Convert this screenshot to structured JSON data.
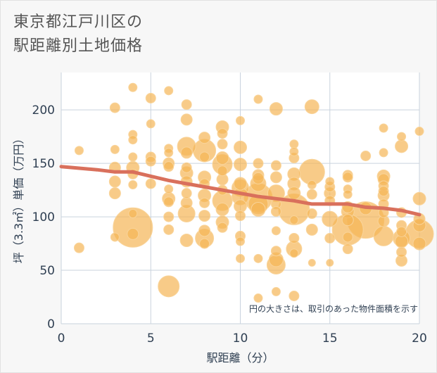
{
  "title": {
    "line1": "東京都江戸川区の",
    "line2": "駅距離別土地価格"
  },
  "colors": {
    "background": "#f7f7f7",
    "plot_background": "#ffffff",
    "bubble": "#f5b555",
    "bubble_stroke": "#f9d49a",
    "trend": "#d9705c",
    "grid": "#c9d3de",
    "axis_text": "#2f3f52"
  },
  "chart_data": {
    "type": "scatter",
    "title": "東京都江戸川区の駅距離別土地価格",
    "xlabel": "駅距離（分）",
    "ylabel": "坪（3.3㎡）単価（万円）",
    "xlim": [
      0,
      20
    ],
    "ylim": [
      0,
      235
    ],
    "xticks": [
      0,
      5,
      10,
      15,
      20
    ],
    "yticks": [
      0,
      50,
      100,
      150,
      200
    ],
    "grid": true,
    "annotation": "円の大きさは、取引のあった物件面積を示す",
    "points": [
      {
        "x": 1,
        "y": 162,
        "s": 6
      },
      {
        "x": 1,
        "y": 71,
        "s": 7
      },
      {
        "x": 3,
        "y": 202,
        "s": 7
      },
      {
        "x": 3,
        "y": 163,
        "s": 6
      },
      {
        "x": 3,
        "y": 146,
        "s": 8
      },
      {
        "x": 3,
        "y": 133,
        "s": 8
      },
      {
        "x": 3,
        "y": 122,
        "s": 8
      },
      {
        "x": 3,
        "y": 81,
        "s": 6
      },
      {
        "x": 4,
        "y": 221,
        "s": 6
      },
      {
        "x": 4,
        "y": 177,
        "s": 6
      },
      {
        "x": 4,
        "y": 172,
        "s": 6
      },
      {
        "x": 4,
        "y": 156,
        "s": 6
      },
      {
        "x": 4,
        "y": 146,
        "s": 9
      },
      {
        "x": 4,
        "y": 140,
        "s": 7
      },
      {
        "x": 4,
        "y": 130,
        "s": 6
      },
      {
        "x": 4,
        "y": 103,
        "s": 6
      },
      {
        "x": 4,
        "y": 90,
        "s": 28
      },
      {
        "x": 4,
        "y": 84,
        "s": 8
      },
      {
        "x": 5,
        "y": 211,
        "s": 7
      },
      {
        "x": 5,
        "y": 187,
        "s": 6
      },
      {
        "x": 5,
        "y": 156,
        "s": 7
      },
      {
        "x": 5,
        "y": 152,
        "s": 7
      },
      {
        "x": 5,
        "y": 131,
        "s": 7
      },
      {
        "x": 6,
        "y": 218,
        "s": 6
      },
      {
        "x": 6,
        "y": 164,
        "s": 6
      },
      {
        "x": 6,
        "y": 160,
        "s": 6
      },
      {
        "x": 6,
        "y": 150,
        "s": 8
      },
      {
        "x": 6,
        "y": 147,
        "s": 7
      },
      {
        "x": 6,
        "y": 126,
        "s": 6
      },
      {
        "x": 6,
        "y": 117,
        "s": 9
      },
      {
        "x": 6,
        "y": 114,
        "s": 7
      },
      {
        "x": 6,
        "y": 100,
        "s": 7
      },
      {
        "x": 6,
        "y": 88,
        "s": 7
      },
      {
        "x": 6,
        "y": 35,
        "s": 15
      },
      {
        "x": 7,
        "y": 205,
        "s": 7
      },
      {
        "x": 7,
        "y": 191,
        "s": 8
      },
      {
        "x": 7,
        "y": 166,
        "s": 13
      },
      {
        "x": 7,
        "y": 160,
        "s": 8
      },
      {
        "x": 7,
        "y": 146,
        "s": 7
      },
      {
        "x": 7,
        "y": 141,
        "s": 9
      },
      {
        "x": 7,
        "y": 133,
        "s": 8
      },
      {
        "x": 7,
        "y": 122,
        "s": 7
      },
      {
        "x": 7,
        "y": 113,
        "s": 8
      },
      {
        "x": 7,
        "y": 103,
        "s": 12
      },
      {
        "x": 7,
        "y": 78,
        "s": 9
      },
      {
        "x": 8,
        "y": 174,
        "s": 8
      },
      {
        "x": 8,
        "y": 162,
        "s": 16
      },
      {
        "x": 8,
        "y": 156,
        "s": 7
      },
      {
        "x": 8,
        "y": 137,
        "s": 9
      },
      {
        "x": 8,
        "y": 131,
        "s": 7
      },
      {
        "x": 8,
        "y": 120,
        "s": 9
      },
      {
        "x": 8,
        "y": 113,
        "s": 7
      },
      {
        "x": 8,
        "y": 101,
        "s": 8
      },
      {
        "x": 8,
        "y": 87,
        "s": 8
      },
      {
        "x": 8,
        "y": 80,
        "s": 13
      },
      {
        "x": 8,
        "y": 75,
        "s": 7
      },
      {
        "x": 9,
        "y": 184,
        "s": 9
      },
      {
        "x": 9,
        "y": 178,
        "s": 7
      },
      {
        "x": 9,
        "y": 168,
        "s": 7
      },
      {
        "x": 9,
        "y": 155,
        "s": 9
      },
      {
        "x": 9,
        "y": 149,
        "s": 14
      },
      {
        "x": 9,
        "y": 143,
        "s": 7
      },
      {
        "x": 9,
        "y": 135,
        "s": 8
      },
      {
        "x": 9,
        "y": 125,
        "s": 7
      },
      {
        "x": 9,
        "y": 115,
        "s": 14
      },
      {
        "x": 9,
        "y": 107,
        "s": 9
      },
      {
        "x": 9,
        "y": 95,
        "s": 9
      },
      {
        "x": 9,
        "y": 90,
        "s": 7
      },
      {
        "x": 10,
        "y": 190,
        "s": 6
      },
      {
        "x": 10,
        "y": 165,
        "s": 9
      },
      {
        "x": 10,
        "y": 149,
        "s": 9
      },
      {
        "x": 10,
        "y": 131,
        "s": 9
      },
      {
        "x": 10,
        "y": 127,
        "s": 12
      },
      {
        "x": 10,
        "y": 119,
        "s": 12
      },
      {
        "x": 10,
        "y": 110,
        "s": 9
      },
      {
        "x": 10,
        "y": 101,
        "s": 7
      },
      {
        "x": 10,
        "y": 82,
        "s": 7
      },
      {
        "x": 10,
        "y": 77,
        "s": 6
      },
      {
        "x": 10,
        "y": 61,
        "s": 6
      },
      {
        "x": 11,
        "y": 210,
        "s": 6
      },
      {
        "x": 11,
        "y": 150,
        "s": 7
      },
      {
        "x": 11,
        "y": 139,
        "s": 8
      },
      {
        "x": 11,
        "y": 136,
        "s": 8
      },
      {
        "x": 11,
        "y": 131,
        "s": 11
      },
      {
        "x": 11,
        "y": 118,
        "s": 20
      },
      {
        "x": 11,
        "y": 112,
        "s": 14
      },
      {
        "x": 11,
        "y": 107,
        "s": 10
      },
      {
        "x": 11,
        "y": 61,
        "s": 6
      },
      {
        "x": 11,
        "y": 24,
        "s": 6
      },
      {
        "x": 12,
        "y": 201,
        "s": 9
      },
      {
        "x": 12,
        "y": 148,
        "s": 7
      },
      {
        "x": 12,
        "y": 137,
        "s": 8
      },
      {
        "x": 12,
        "y": 122,
        "s": 12
      },
      {
        "x": 12,
        "y": 112,
        "s": 7
      },
      {
        "x": 12,
        "y": 105,
        "s": 7
      },
      {
        "x": 12,
        "y": 87,
        "s": 6
      },
      {
        "x": 12,
        "y": 68,
        "s": 7
      },
      {
        "x": 12,
        "y": 60,
        "s": 10
      },
      {
        "x": 12,
        "y": 55,
        "s": 13
      },
      {
        "x": 12,
        "y": 30,
        "s": 6
      },
      {
        "x": 13,
        "y": 168,
        "s": 6
      },
      {
        "x": 13,
        "y": 161,
        "s": 6
      },
      {
        "x": 13,
        "y": 155,
        "s": 7
      },
      {
        "x": 13,
        "y": 140,
        "s": 9
      },
      {
        "x": 13,
        "y": 131,
        "s": 9
      },
      {
        "x": 13,
        "y": 122,
        "s": 9
      },
      {
        "x": 13,
        "y": 107,
        "s": 22
      },
      {
        "x": 13,
        "y": 97,
        "s": 6
      },
      {
        "x": 13,
        "y": 80,
        "s": 7
      },
      {
        "x": 13,
        "y": 70,
        "s": 11
      },
      {
        "x": 13,
        "y": 66,
        "s": 6
      },
      {
        "x": 13,
        "y": 26,
        "s": 7
      },
      {
        "x": 14,
        "y": 203,
        "s": 10
      },
      {
        "x": 14,
        "y": 142,
        "s": 18
      },
      {
        "x": 14,
        "y": 130,
        "s": 6
      },
      {
        "x": 14,
        "y": 121,
        "s": 7
      },
      {
        "x": 14,
        "y": 103,
        "s": 7
      },
      {
        "x": 14,
        "y": 88,
        "s": 8
      },
      {
        "x": 14,
        "y": 57,
        "s": 5
      },
      {
        "x": 15,
        "y": 133,
        "s": 6
      },
      {
        "x": 15,
        "y": 128,
        "s": 7
      },
      {
        "x": 15,
        "y": 122,
        "s": 8
      },
      {
        "x": 15,
        "y": 115,
        "s": 7
      },
      {
        "x": 15,
        "y": 98,
        "s": 11
      },
      {
        "x": 15,
        "y": 80,
        "s": 7
      },
      {
        "x": 15,
        "y": 57,
        "s": 5
      },
      {
        "x": 16,
        "y": 139,
        "s": 7
      },
      {
        "x": 16,
        "y": 137,
        "s": 7
      },
      {
        "x": 16,
        "y": 126,
        "s": 6
      },
      {
        "x": 16,
        "y": 121,
        "s": 6
      },
      {
        "x": 16,
        "y": 109,
        "s": 8
      },
      {
        "x": 16,
        "y": 105,
        "s": 9
      },
      {
        "x": 16,
        "y": 97,
        "s": 8
      },
      {
        "x": 16,
        "y": 88,
        "s": 22
      },
      {
        "x": 16,
        "y": 81,
        "s": 7
      },
      {
        "x": 16,
        "y": 70,
        "s": 7
      },
      {
        "x": 17,
        "y": 157,
        "s": 7
      },
      {
        "x": 17,
        "y": 108,
        "s": 9
      },
      {
        "x": 17,
        "y": 97,
        "s": 26
      },
      {
        "x": 18,
        "y": 183,
        "s": 6
      },
      {
        "x": 18,
        "y": 160,
        "s": 6
      },
      {
        "x": 18,
        "y": 138,
        "s": 9
      },
      {
        "x": 18,
        "y": 135,
        "s": 8
      },
      {
        "x": 18,
        "y": 129,
        "s": 7
      },
      {
        "x": 18,
        "y": 124,
        "s": 7
      },
      {
        "x": 18,
        "y": 120,
        "s": 8
      },
      {
        "x": 18,
        "y": 112,
        "s": 7
      },
      {
        "x": 18,
        "y": 104,
        "s": 7
      },
      {
        "x": 18,
        "y": 96,
        "s": 8
      },
      {
        "x": 18,
        "y": 82,
        "s": 14
      },
      {
        "x": 19,
        "y": 175,
        "s": 6
      },
      {
        "x": 19,
        "y": 166,
        "s": 9
      },
      {
        "x": 19,
        "y": 104,
        "s": 7
      },
      {
        "x": 19,
        "y": 92,
        "s": 7
      },
      {
        "x": 19,
        "y": 86,
        "s": 7
      },
      {
        "x": 19,
        "y": 80,
        "s": 12
      },
      {
        "x": 19,
        "y": 77,
        "s": 9
      },
      {
        "x": 19,
        "y": 67,
        "s": 7
      },
      {
        "x": 19,
        "y": 59,
        "s": 8
      },
      {
        "x": 20,
        "y": 180,
        "s": 6
      },
      {
        "x": 20,
        "y": 117,
        "s": 9
      },
      {
        "x": 20,
        "y": 98,
        "s": 8
      },
      {
        "x": 20,
        "y": 92,
        "s": 9
      },
      {
        "x": 20,
        "y": 84,
        "s": 20
      },
      {
        "x": 20,
        "y": 75,
        "s": 9
      }
    ],
    "trend": {
      "name": "",
      "x": [
        0,
        2,
        3,
        4,
        5,
        6,
        7,
        8,
        9,
        10,
        11,
        12,
        13,
        14,
        15,
        16,
        17,
        18,
        19,
        20
      ],
      "y": [
        147,
        144,
        142,
        142,
        138,
        134,
        131,
        128,
        125,
        122,
        119,
        117,
        115,
        112,
        112,
        112,
        109,
        108,
        106,
        102
      ]
    }
  }
}
